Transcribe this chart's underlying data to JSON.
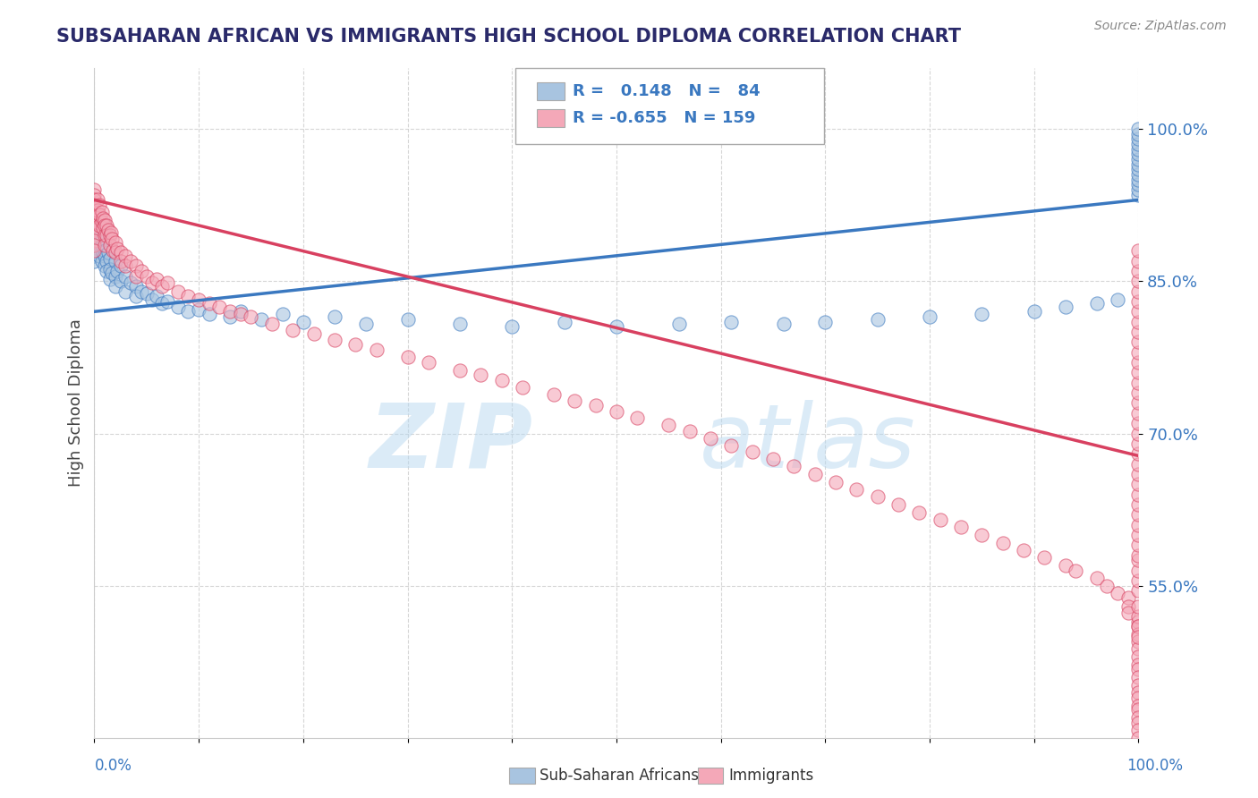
{
  "title": "SUBSAHARAN AFRICAN VS IMMIGRANTS HIGH SCHOOL DIPLOMA CORRELATION CHART",
  "source": "Source: ZipAtlas.com",
  "ylabel": "High School Diploma",
  "ytick_labels": [
    "55.0%",
    "70.0%",
    "85.0%",
    "100.0%"
  ],
  "ytick_values": [
    0.55,
    0.7,
    0.85,
    1.0
  ],
  "xrange": [
    0.0,
    1.0
  ],
  "yrange": [
    0.4,
    1.06
  ],
  "blue_R": 0.148,
  "blue_N": 84,
  "pink_R": -0.655,
  "pink_N": 159,
  "blue_color": "#a8c4e0",
  "pink_color": "#f4a8b8",
  "blue_line_color": "#3a78c0",
  "pink_line_color": "#d84060",
  "legend_label_blue": "Sub-Saharan Africans",
  "legend_label_pink": "Immigrants",
  "title_color": "#2a2a6a",
  "source_color": "#888888",
  "watermark_zip": "ZIP",
  "watermark_atlas": "atlas",
  "background_color": "#ffffff",
  "blue_line_start_y": 0.82,
  "blue_line_end_y": 0.93,
  "pink_line_start_y": 0.93,
  "pink_line_end_y": 0.678,
  "blue_scatter_x": [
    0.0,
    0.0,
    0.0,
    0.0,
    0.0,
    0.0,
    0.0,
    0.0,
    0.003,
    0.003,
    0.005,
    0.005,
    0.007,
    0.007,
    0.008,
    0.008,
    0.01,
    0.01,
    0.01,
    0.012,
    0.012,
    0.013,
    0.015,
    0.015,
    0.015,
    0.017,
    0.02,
    0.02,
    0.02,
    0.022,
    0.025,
    0.025,
    0.03,
    0.03,
    0.035,
    0.04,
    0.04,
    0.045,
    0.05,
    0.055,
    0.06,
    0.065,
    0.07,
    0.08,
    0.09,
    0.1,
    0.11,
    0.13,
    0.14,
    0.16,
    0.18,
    0.2,
    0.23,
    0.26,
    0.3,
    0.35,
    0.4,
    0.45,
    0.5,
    0.56,
    0.61,
    0.66,
    0.7,
    0.75,
    0.8,
    0.85,
    0.9,
    0.93,
    0.96,
    0.98,
    1.0,
    1.0,
    1.0,
    1.0,
    1.0,
    1.0,
    1.0,
    1.0,
    1.0,
    1.0,
    1.0,
    1.0,
    1.0,
    1.0
  ],
  "blue_scatter_y": [
    0.895,
    0.9,
    0.905,
    0.89,
    0.885,
    0.88,
    0.875,
    0.87,
    0.9,
    0.89,
    0.895,
    0.875,
    0.885,
    0.87,
    0.892,
    0.878,
    0.88,
    0.875,
    0.865,
    0.87,
    0.86,
    0.878,
    0.872,
    0.862,
    0.852,
    0.858,
    0.87,
    0.855,
    0.845,
    0.86,
    0.865,
    0.85,
    0.855,
    0.84,
    0.848,
    0.845,
    0.835,
    0.84,
    0.838,
    0.832,
    0.835,
    0.828,
    0.83,
    0.825,
    0.82,
    0.822,
    0.818,
    0.815,
    0.82,
    0.812,
    0.818,
    0.81,
    0.815,
    0.808,
    0.812,
    0.808,
    0.805,
    0.81,
    0.805,
    0.808,
    0.81,
    0.808,
    0.81,
    0.812,
    0.815,
    0.818,
    0.82,
    0.825,
    0.828,
    0.832,
    0.935,
    0.94,
    0.945,
    0.95,
    0.955,
    0.96,
    0.965,
    0.97,
    0.975,
    0.98,
    0.985,
    0.99,
    0.995,
    1.0
  ],
  "pink_scatter_x": [
    0.0,
    0.0,
    0.0,
    0.0,
    0.0,
    0.0,
    0.0,
    0.0,
    0.0,
    0.0,
    0.0,
    0.0,
    0.0,
    0.003,
    0.003,
    0.005,
    0.005,
    0.005,
    0.007,
    0.007,
    0.008,
    0.008,
    0.01,
    0.01,
    0.01,
    0.01,
    0.012,
    0.012,
    0.013,
    0.015,
    0.015,
    0.016,
    0.017,
    0.018,
    0.02,
    0.02,
    0.022,
    0.025,
    0.025,
    0.03,
    0.03,
    0.035,
    0.04,
    0.04,
    0.045,
    0.05,
    0.055,
    0.06,
    0.065,
    0.07,
    0.08,
    0.09,
    0.1,
    0.11,
    0.12,
    0.13,
    0.14,
    0.15,
    0.17,
    0.19,
    0.21,
    0.23,
    0.25,
    0.27,
    0.3,
    0.32,
    0.35,
    0.37,
    0.39,
    0.41,
    0.44,
    0.46,
    0.48,
    0.5,
    0.52,
    0.55,
    0.57,
    0.59,
    0.61,
    0.63,
    0.65,
    0.67,
    0.69,
    0.71,
    0.73,
    0.75,
    0.77,
    0.79,
    0.81,
    0.83,
    0.85,
    0.87,
    0.89,
    0.91,
    0.93,
    0.94,
    0.96,
    0.97,
    0.98,
    0.99,
    0.99,
    0.99,
    1.0,
    1.0,
    1.0,
    1.0,
    1.0,
    1.0,
    1.0,
    1.0,
    1.0,
    1.0,
    1.0,
    1.0,
    1.0,
    1.0,
    1.0,
    1.0,
    1.0,
    1.0,
    1.0,
    1.0,
    1.0,
    1.0,
    1.0,
    1.0,
    1.0,
    1.0,
    1.0,
    1.0,
    1.0,
    1.0,
    1.0,
    1.0,
    1.0,
    1.0,
    1.0,
    1.0,
    1.0,
    1.0,
    1.0,
    1.0,
    1.0,
    1.0,
    1.0,
    1.0,
    1.0,
    1.0,
    1.0,
    1.0,
    1.0,
    1.0,
    1.0,
    1.0,
    1.0,
    1.0,
    1.0,
    1.0,
    1.0
  ],
  "pink_scatter_y": [
    0.94,
    0.935,
    0.93,
    0.925,
    0.92,
    0.915,
    0.91,
    0.905,
    0.9,
    0.895,
    0.89,
    0.885,
    0.88,
    0.93,
    0.92,
    0.925,
    0.915,
    0.905,
    0.918,
    0.908,
    0.912,
    0.902,
    0.91,
    0.905,
    0.895,
    0.885,
    0.905,
    0.895,
    0.9,
    0.895,
    0.885,
    0.898,
    0.892,
    0.88,
    0.888,
    0.878,
    0.882,
    0.878,
    0.87,
    0.875,
    0.865,
    0.87,
    0.865,
    0.855,
    0.86,
    0.855,
    0.848,
    0.852,
    0.845,
    0.848,
    0.84,
    0.835,
    0.832,
    0.828,
    0.825,
    0.82,
    0.818,
    0.815,
    0.808,
    0.802,
    0.798,
    0.792,
    0.788,
    0.782,
    0.775,
    0.77,
    0.762,
    0.758,
    0.752,
    0.745,
    0.738,
    0.732,
    0.728,
    0.722,
    0.715,
    0.708,
    0.702,
    0.695,
    0.688,
    0.682,
    0.675,
    0.668,
    0.66,
    0.652,
    0.645,
    0.638,
    0.63,
    0.622,
    0.615,
    0.608,
    0.6,
    0.592,
    0.585,
    0.578,
    0.57,
    0.565,
    0.558,
    0.55,
    0.543,
    0.538,
    0.53,
    0.523,
    0.515,
    0.51,
    0.502,
    0.495,
    0.488,
    0.48,
    0.472,
    0.468,
    0.46,
    0.452,
    0.445,
    0.44,
    0.432,
    0.428,
    0.42,
    0.415,
    0.408,
    0.4,
    0.52,
    0.51,
    0.5,
    0.53,
    0.545,
    0.555,
    0.565,
    0.575,
    0.58,
    0.59,
    0.6,
    0.61,
    0.62,
    0.63,
    0.64,
    0.65,
    0.66,
    0.67,
    0.68,
    0.69,
    0.7,
    0.71,
    0.72,
    0.73,
    0.74,
    0.75,
    0.76,
    0.77,
    0.78,
    0.79,
    0.8,
    0.81,
    0.82,
    0.83,
    0.84,
    0.85,
    0.86,
    0.87,
    0.88
  ]
}
